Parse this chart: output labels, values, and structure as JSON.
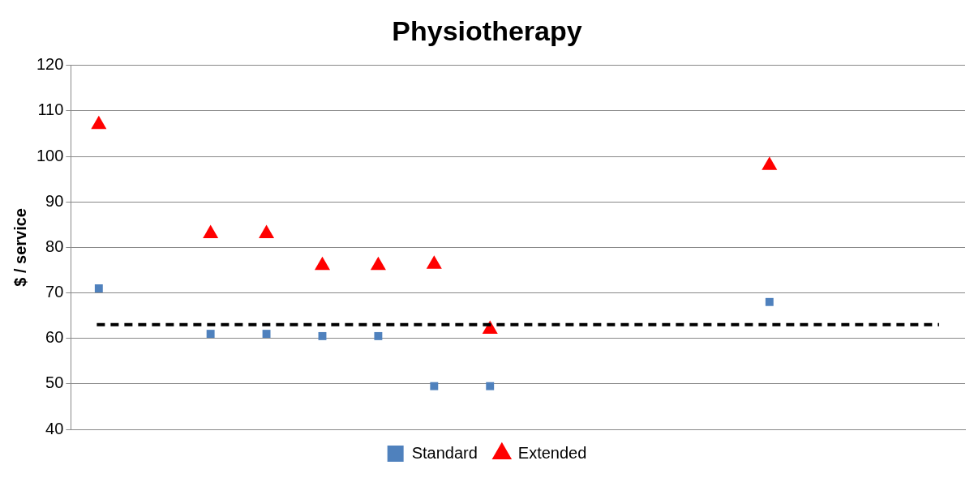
{
  "chart_data": {
    "type": "scatter",
    "title": "Physiotherapy",
    "ylabel": "$ / service",
    "categories": [
      null,
      null,
      null,
      null,
      null,
      null,
      null,
      null,
      null,
      null,
      null,
      null,
      null,
      null,
      null,
      null
    ],
    "series": [
      {
        "name": "Standard",
        "color": "#4f81bd",
        "marker": "square",
        "values": [
          71,
          null,
          61,
          61,
          60.5,
          60.5,
          49.5,
          49.5,
          null,
          null,
          null,
          null,
          68,
          null,
          null,
          null
        ]
      },
      {
        "name": "Extended",
        "color": "#ff0000",
        "marker": "triangle",
        "values": [
          107,
          null,
          83,
          83,
          76,
          76,
          76.3,
          62,
          null,
          null,
          null,
          null,
          98,
          null,
          null,
          null
        ]
      }
    ],
    "ylim": [
      40,
      120
    ],
    "yticks": [
      40,
      50,
      60,
      70,
      80,
      90,
      100,
      110,
      120
    ],
    "grid": "y",
    "legend": "bottom",
    "tick_labels": "y",
    "ref_lines": [
      {
        "axis": "y",
        "value": 63,
        "color": "#000000",
        "line_style": "dashed"
      }
    ]
  }
}
